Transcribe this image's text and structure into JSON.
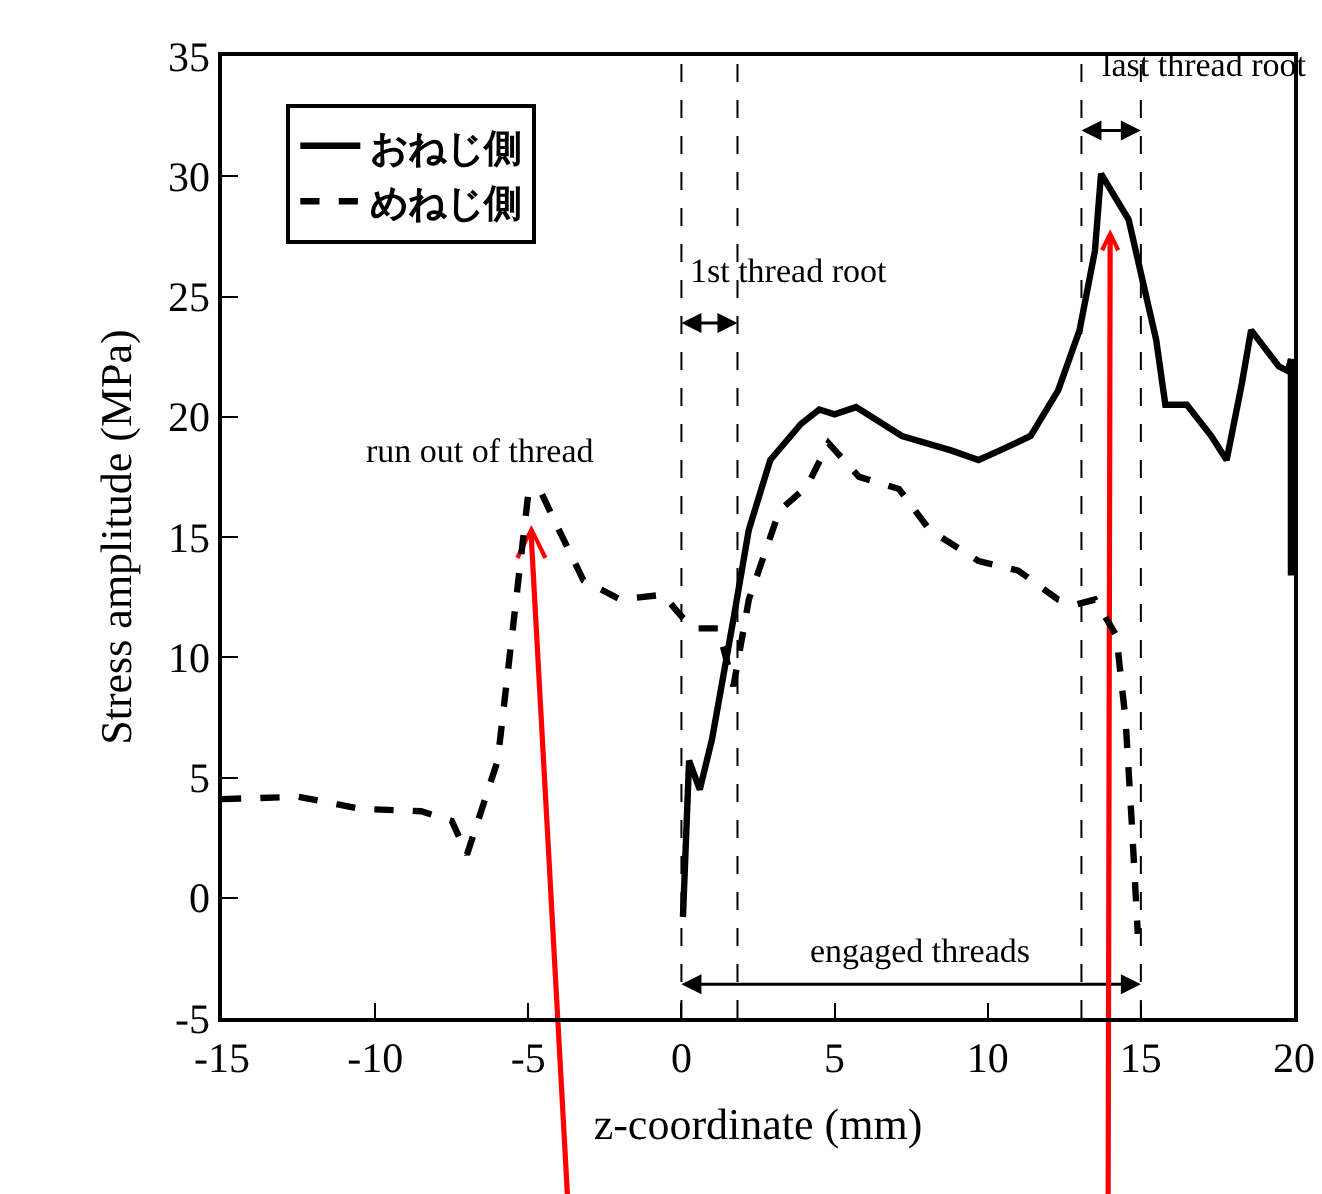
{
  "chart_data": {
    "type": "line",
    "xlabel": "z-coordinate (mm)",
    "ylabel": "Stress amplitude (MPa)",
    "xlim": [
      -15,
      20
    ],
    "xticks": [
      -15,
      -10,
      -5,
      0,
      5,
      10,
      15,
      20
    ],
    "ylim": [
      -5,
      35
    ],
    "yticks": [
      -5,
      0,
      5,
      10,
      15,
      20,
      25,
      30,
      35
    ],
    "legend": "top left",
    "series": [
      {
        "name": "おねじ側",
        "color": "#000000",
        "line_style": "solid",
        "x": [
          0.05,
          0.25,
          0.6,
          1.0,
          1.7,
          2.2,
          2.9,
          3.9,
          4.5,
          5.0,
          5.7,
          7.2,
          8.8,
          9.7,
          10.4,
          11.4,
          12.3,
          13.0,
          13.5,
          13.7,
          14.6,
          15.5,
          15.8,
          16.5,
          17.3,
          17.8,
          18.3,
          18.6,
          19.5,
          19.8,
          19.9,
          19.9
        ],
        "values": [
          -0.8,
          5.7,
          4.5,
          6.6,
          11.6,
          15.3,
          18.2,
          19.7,
          20.3,
          20.1,
          20.4,
          19.2,
          18.6,
          18.2,
          18.6,
          19.2,
          21.1,
          23.6,
          26.9,
          30.1,
          28.2,
          23.2,
          20.5,
          20.5,
          19.2,
          18.2,
          21.4,
          23.6,
          22.1,
          21.9,
          22.4,
          13.4
        ]
      },
      {
        "name": "めねじ側",
        "color": "#000000",
        "line_style": "dashed",
        "x": [
          -15,
          -12.5,
          -10.5,
          -8.5,
          -7.5,
          -7,
          -6,
          -5,
          -4.6,
          -4,
          -3.2,
          -2,
          -0.6,
          0,
          0.4,
          1.2,
          1.7,
          2.2,
          3.2,
          4.1,
          4.8,
          5.8,
          7.1,
          8.1,
          9.7,
          11.0,
          12.3,
          12.9,
          13.5,
          14.2,
          14.5,
          14.7,
          14.9
        ],
        "values": [
          4.1,
          4.2,
          3.7,
          3.6,
          3.2,
          1.8,
          5.7,
          16.8,
          16.9,
          15.3,
          13.2,
          12.4,
          12.6,
          11.7,
          11.2,
          11.2,
          8.8,
          12.4,
          16.1,
          17.1,
          18.9,
          17.5,
          17.0,
          15.3,
          14.0,
          13.6,
          12.4,
          12.2,
          12.4,
          10.9,
          7.4,
          3.2,
          -1.5
        ]
      }
    ],
    "ref_lines": [
      {
        "axis": "x",
        "value": 0,
        "color": "#000000",
        "line_style": "dashed"
      },
      {
        "axis": "x",
        "value": 1.83,
        "color": "#000000",
        "line_style": "dashed"
      },
      {
        "axis": "x",
        "value": 13.06,
        "color": "#000000",
        "line_style": "dashed"
      },
      {
        "axis": "x",
        "value": 15,
        "color": "#000000",
        "line_style": "dashed"
      }
    ],
    "annotations": [
      "run out of thread",
      "1st thread root",
      "last thread root",
      "engaged threads"
    ]
  }
}
